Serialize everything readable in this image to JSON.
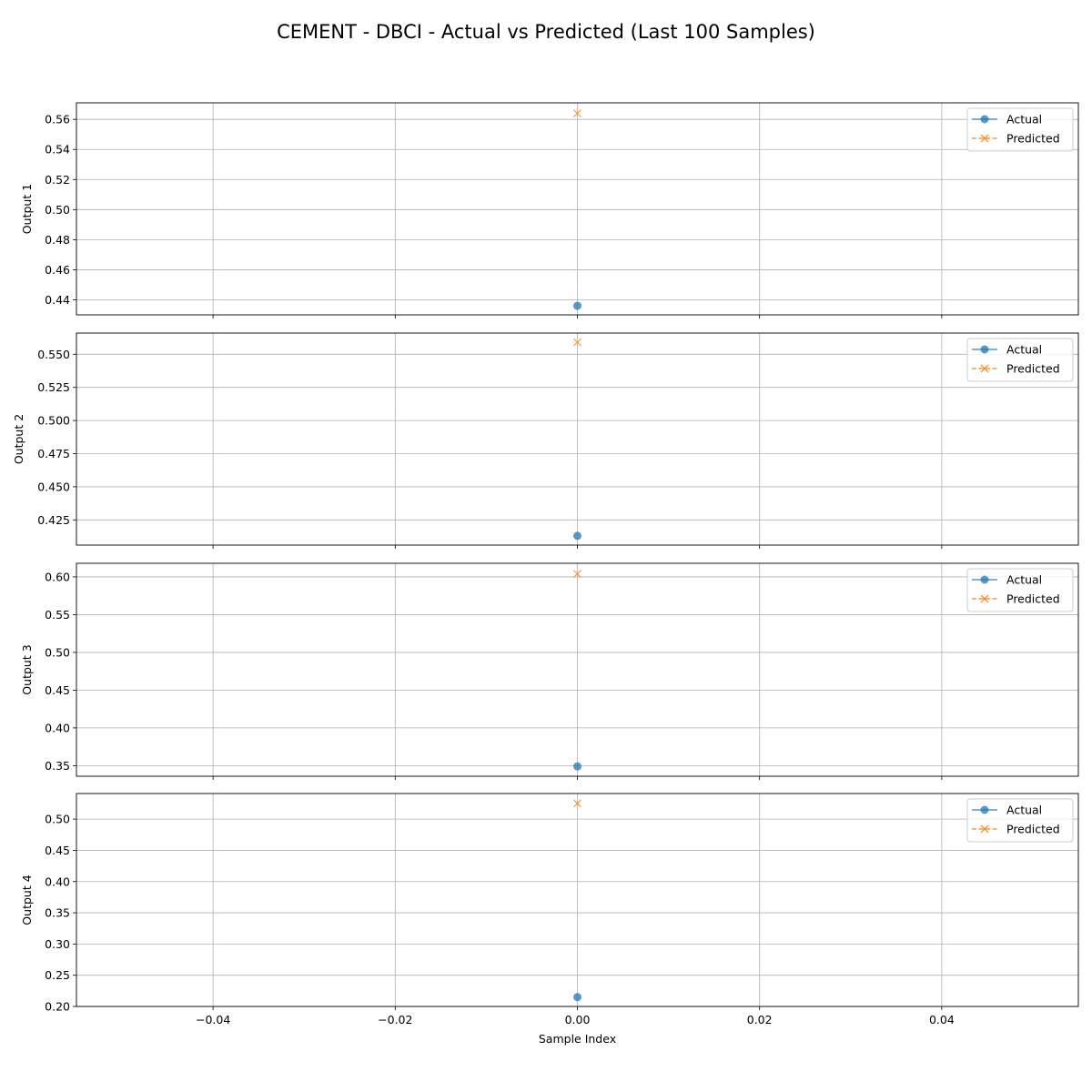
{
  "chart_data": {
    "type": "line",
    "title": "CEMENT - DBCI - Actual vs Predicted (Last 100 Samples)",
    "xlabel": "Sample Index",
    "xlim": [
      -0.055,
      0.055
    ],
    "xticks": [
      -0.04,
      -0.02,
      0.0,
      0.02,
      0.04
    ],
    "xtick_labels": [
      "−0.04",
      "−0.02",
      "0.00",
      "0.02",
      "0.04"
    ],
    "grid": true,
    "legend_placement": "upper-right",
    "colors": {
      "actual": "#1f77b4",
      "predicted": "#ff7f0e"
    },
    "subplots": [
      {
        "ylabel": "Output 1",
        "ylim": [
          0.43,
          0.571
        ],
        "yticks": [
          0.44,
          0.46,
          0.48,
          0.5,
          0.52,
          0.54,
          0.56
        ],
        "ytick_labels": [
          "0.44",
          "0.46",
          "0.48",
          "0.50",
          "0.52",
          "0.54",
          "0.56"
        ],
        "series": [
          {
            "name": "Actual",
            "x": [
              0
            ],
            "values": [
              0.436
            ]
          },
          {
            "name": "Predicted",
            "x": [
              0
            ],
            "values": [
              0.564
            ]
          }
        ]
      },
      {
        "ylabel": "Output 2",
        "ylim": [
          0.406,
          0.566
        ],
        "yticks": [
          0.425,
          0.45,
          0.475,
          0.5,
          0.525,
          0.55
        ],
        "ytick_labels": [
          "0.425",
          "0.450",
          "0.475",
          "0.500",
          "0.525",
          "0.550"
        ],
        "series": [
          {
            "name": "Actual",
            "x": [
              0
            ],
            "values": [
              0.413
            ]
          },
          {
            "name": "Predicted",
            "x": [
              0
            ],
            "values": [
              0.559
            ]
          }
        ]
      },
      {
        "ylabel": "Output 3",
        "ylim": [
          0.336,
          0.618
        ],
        "yticks": [
          0.35,
          0.4,
          0.45,
          0.5,
          0.55,
          0.6
        ],
        "ytick_labels": [
          "0.35",
          "0.40",
          "0.45",
          "0.50",
          "0.55",
          "0.60"
        ],
        "series": [
          {
            "name": "Actual",
            "x": [
              0
            ],
            "values": [
              0.349
            ]
          },
          {
            "name": "Predicted",
            "x": [
              0
            ],
            "values": [
              0.604
            ]
          }
        ]
      },
      {
        "ylabel": "Output 4",
        "ylim": [
          0.2,
          0.541
        ],
        "yticks": [
          0.2,
          0.25,
          0.3,
          0.35,
          0.4,
          0.45,
          0.5
        ],
        "ytick_labels": [
          "0.20",
          "0.25",
          "0.30",
          "0.35",
          "0.40",
          "0.45",
          "0.50"
        ],
        "series": [
          {
            "name": "Actual",
            "x": [
              0
            ],
            "values": [
              0.215
            ]
          },
          {
            "name": "Predicted",
            "x": [
              0
            ],
            "values": [
              0.525
            ]
          }
        ]
      }
    ]
  }
}
